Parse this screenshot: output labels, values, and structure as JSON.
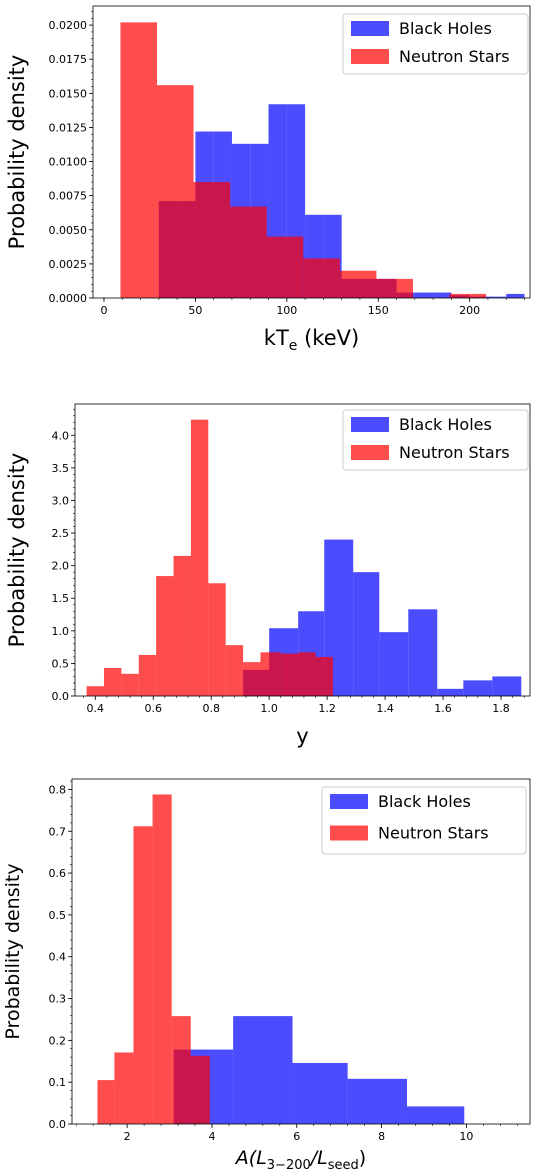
{
  "chart_data": [
    {
      "type": "bar",
      "xlabel": "kT",
      "xlabel_sub": "e",
      "xlabel_suffix": " (keV)",
      "ylabel": "Probability density",
      "xlim": [
        -6,
        233
      ],
      "ylim": [
        0,
        0.0214
      ],
      "xticks": [
        0,
        50,
        100,
        150,
        200
      ],
      "yticks": [
        0.0,
        0.0025,
        0.005,
        0.0075,
        0.01,
        0.0125,
        0.015,
        0.0175,
        0.02
      ],
      "ytick_labels": [
        "0.0000",
        "0.0025",
        "0.0050",
        "0.0075",
        "0.0100",
        "0.0125",
        "0.0150",
        "0.0175",
        "0.0200"
      ],
      "xtick_labels": [
        "0",
        "50",
        "100",
        "150",
        "200"
      ],
      "legend": {
        "location": "upper right",
        "entries": [
          "Black Holes",
          "Neutron Stars"
        ]
      },
      "series": [
        {
          "name": "Black Holes",
          "color": "#0000ff",
          "opacity": 0.7,
          "edges": [
            30,
            40,
            50,
            60,
            70,
            80,
            90,
            100,
            110,
            120,
            130,
            140,
            150,
            160,
            170,
            180,
            190,
            200,
            210,
            220,
            230
          ],
          "values": [
            0.0071,
            0.0071,
            0.0122,
            0.0122,
            0.0113,
            0.0113,
            0.0142,
            0.0142,
            0.0061,
            0.0061,
            0.0014,
            0.0014,
            0.0014,
            0.0004,
            0.0004,
            0.0004,
            0.0002,
            0.0001,
            0.0001,
            0.0003
          ]
        },
        {
          "name": "Neutron Stars",
          "color": "#ff0000",
          "opacity": 0.7,
          "edges": [
            9,
            29,
            49,
            69,
            89,
            109,
            129,
            149,
            169,
            189,
            209
          ],
          "values": [
            0.0202,
            0.0156,
            0.0085,
            0.0067,
            0.0045,
            0.0029,
            0.002,
            0.0014,
            0.0,
            0.0003
          ]
        }
      ]
    },
    {
      "type": "bar",
      "xlabel": "y",
      "ylabel": "Probability density",
      "xlim": [
        0.33,
        1.9
      ],
      "ylim": [
        0,
        4.48
      ],
      "xticks": [
        0.4,
        0.6,
        0.8,
        1.0,
        1.2,
        1.4,
        1.6,
        1.8
      ],
      "xtick_labels": [
        "0.4",
        "0.6",
        "0.8",
        "1.0",
        "1.2",
        "1.4",
        "1.6",
        "1.8"
      ],
      "yticks": [
        0.0,
        0.5,
        1.0,
        1.5,
        2.0,
        2.5,
        3.0,
        3.5,
        4.0
      ],
      "ytick_labels": [
        "0.0",
        "0.5",
        "1.0",
        "1.5",
        "2.0",
        "2.5",
        "3.0",
        "3.5",
        "4.0"
      ],
      "legend": {
        "location": "upper right",
        "entries": [
          "Black Holes",
          "Neutron Stars"
        ]
      },
      "series": [
        {
          "name": "Black Holes",
          "color": "#0000ff",
          "opacity": 0.7,
          "edges": [
            0.91,
            1.0,
            1.1,
            1.19,
            1.29,
            1.38,
            1.48,
            1.58,
            1.67,
            1.77,
            1.87
          ],
          "values": [
            0.4,
            1.04,
            1.3,
            2.4,
            1.9,
            0.98,
            1.33,
            0.11,
            0.24,
            0.3
          ]
        },
        {
          "name": "Neutron Stars",
          "color": "#ff0000",
          "opacity": 0.7,
          "edges": [
            0.37,
            0.43,
            0.49,
            0.55,
            0.61,
            0.67,
            0.73,
            0.79,
            0.85,
            0.91,
            0.97,
            1.04,
            1.1,
            1.16,
            1.22
          ],
          "values": [
            0.15,
            0.43,
            0.34,
            0.63,
            1.84,
            2.15,
            4.24,
            1.73,
            0.78,
            0.52,
            0.67,
            0.65,
            0.67,
            0.6
          ]
        }
      ]
    },
    {
      "type": "bar",
      "xlabel": "A(L",
      "xlabel_sub1": "3−200",
      "xlabel_mid": "/L",
      "xlabel_sub2": "seed",
      "xlabel_suffix": ")",
      "ylabel": "Probability density",
      "xlim": [
        0.7,
        11.5
      ],
      "ylim": [
        0,
        0.825
      ],
      "xticks": [
        2,
        4,
        6,
        8,
        10
      ],
      "xtick_labels": [
        "2",
        "4",
        "6",
        "8",
        "10"
      ],
      "yticks": [
        0.0,
        0.1,
        0.2,
        0.3,
        0.4,
        0.5,
        0.6,
        0.7,
        0.8
      ],
      "ytick_labels": [
        "0.0",
        "0.1",
        "0.2",
        "0.3",
        "0.4",
        "0.5",
        "0.6",
        "0.7",
        "0.8"
      ],
      "legend": {
        "location": "upper right",
        "entries": [
          "Black Holes",
          "Neutron Stars"
        ]
      },
      "series": [
        {
          "name": "Black Holes",
          "color": "#0000ff",
          "opacity": 0.7,
          "edges": [
            3.1,
            4.5,
            5.9,
            7.2,
            8.6,
            9.95
          ],
          "values": [
            0.178,
            0.258,
            0.146,
            0.108,
            0.042
          ]
        },
        {
          "name": "Neutron Stars",
          "color": "#ff0000",
          "opacity": 0.7,
          "edges": [
            1.3,
            1.7,
            2.15,
            2.6,
            3.05,
            3.5,
            3.95
          ],
          "values": [
            0.105,
            0.171,
            0.712,
            0.788,
            0.258,
            0.163
          ]
        }
      ]
    }
  ]
}
